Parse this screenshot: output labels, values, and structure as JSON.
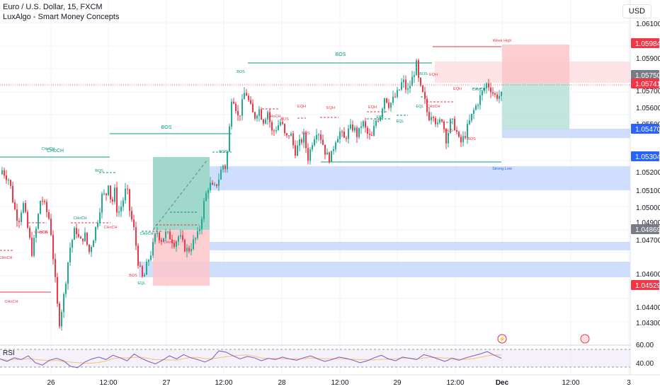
{
  "header": {
    "symbol": "Euro / U.S. Dollar, 15, FXCM",
    "indicator": "LuxAlgo - Smart Money Concepts",
    "currency_button": "USD",
    "rsi_label": "RSI"
  },
  "colors": {
    "up": "#22ab94",
    "down": "#f23645",
    "smc_green": "#089981",
    "smc_red": "#f23645",
    "demand_zone": "#c5d8fb",
    "tp_zone": "#b3e0d6",
    "sl_zone": "#fcc6c9",
    "grid": "#f0f3fa",
    "axis_text": "#131722",
    "rsi_line": "#7e57c2",
    "rsi_ma": "#f5c26b"
  },
  "chart_data": {
    "type": "candlestick",
    "title": "Euro / U.S. Dollar, 15, FXCM",
    "ylim": [
      1.0417,
      1.0637
    ],
    "y_ticks": [
      "1.06100",
      "1.05900",
      "1.05700",
      "1.05600",
      "1.05500",
      "1.05200",
      "1.05100",
      "1.05000",
      "1.04900",
      "1.04700",
      "1.04600",
      "1.04400",
      "1.04300"
    ],
    "x_ticks": [
      "26",
      "12:00",
      "27",
      "12:00",
      "28",
      "12:00",
      "29",
      "12:00",
      "Dec",
      "12:00",
      "3"
    ],
    "price_labels": [
      {
        "value": "1.05984",
        "kind": "red"
      },
      {
        "value": "1.05750",
        "kind": "gray"
      },
      {
        "value": "1.05741",
        "kind": "red"
      },
      {
        "value": "1.05470",
        "kind": "blue"
      },
      {
        "value": "1.05304",
        "kind": "blue"
      },
      {
        "value": "1.04869",
        "kind": "gray"
      },
      {
        "value": "1.04529",
        "kind": "red"
      }
    ],
    "close_path": [
      [
        0,
        1.0526
      ],
      [
        0.3,
        1.0522
      ],
      [
        0.6,
        1.0505
      ],
      [
        0.9,
        1.0496
      ],
      [
        1.2,
        1.0508
      ],
      [
        1.5,
        1.0492
      ],
      [
        1.8,
        1.0476
      ],
      [
        2.1,
        1.0492
      ],
      [
        2.4,
        1.0512
      ],
      [
        2.7,
        1.0504
      ],
      [
        3.0,
        1.0496
      ],
      [
        3.4,
        1.0452
      ],
      [
        3.6,
        1.043
      ],
      [
        3.9,
        1.0447
      ],
      [
        4.3,
        1.0478
      ],
      [
        4.7,
        1.0492
      ],
      [
        5.0,
        1.0482
      ],
      [
        5.3,
        1.0488
      ],
      [
        5.6,
        1.0476
      ],
      [
        5.9,
        1.0486
      ],
      [
        6.2,
        1.0498
      ],
      [
        6.5,
        1.0514
      ],
      [
        6.7,
        1.0511
      ],
      [
        6.9,
        1.0522
      ],
      [
        7.1,
        1.0505
      ],
      [
        7.3,
        1.0516
      ],
      [
        7.5,
        1.05
      ],
      [
        7.8,
        1.0507
      ],
      [
        8.1,
        1.0518
      ],
      [
        8.3,
        1.0503
      ],
      [
        8.6,
        1.049
      ],
      [
        8.9,
        1.0468
      ],
      [
        9.2,
        1.0458
      ],
      [
        9.5,
        1.047
      ],
      [
        9.8,
        1.0478
      ],
      [
        10.1,
        1.049
      ],
      [
        10.4,
        1.0484
      ],
      [
        10.7,
        1.0488
      ],
      [
        11.0,
        1.0486
      ],
      [
        11.3,
        1.0482
      ],
      [
        11.6,
        1.0487
      ],
      [
        11.9,
        1.048
      ],
      [
        12.2,
        1.0477
      ],
      [
        12.5,
        1.0482
      ],
      [
        12.9,
        1.0488
      ],
      [
        13.3,
        1.051
      ],
      [
        13.6,
        1.052
      ],
      [
        13.9,
        1.0516
      ],
      [
        14.2,
        1.0522
      ],
      [
        14.5,
        1.0532
      ],
      [
        14.7,
        1.053
      ],
      [
        14.9,
        1.0548
      ],
      [
        15.1,
        1.0576
      ],
      [
        15.3,
        1.0573
      ],
      [
        15.5,
        1.0562
      ],
      [
        15.7,
        1.0566
      ],
      [
        16.0,
        1.058
      ],
      [
        16.3,
        1.057
      ],
      [
        16.6,
        1.0562
      ],
      [
        16.9,
        1.0568
      ],
      [
        17.2,
        1.056
      ],
      [
        17.5,
        1.0566
      ],
      [
        17.8,
        1.0552
      ],
      [
        18.1,
        1.0556
      ],
      [
        18.4,
        1.056
      ],
      [
        18.7,
        1.0548
      ],
      [
        19.0,
        1.0553
      ],
      [
        19.3,
        1.054
      ],
      [
        19.6,
        1.0545
      ],
      [
        19.9,
        1.055
      ],
      [
        20.2,
        1.0536
      ],
      [
        20.5,
        1.0548
      ],
      [
        20.8,
        1.0555
      ],
      [
        21.1,
        1.0548
      ],
      [
        21.4,
        1.0538
      ],
      [
        21.7,
        1.0536
      ],
      [
        22.0,
        1.0548
      ],
      [
        22.3,
        1.0553
      ],
      [
        22.6,
        1.0548
      ],
      [
        22.9,
        1.0554
      ],
      [
        23.2,
        1.0556
      ],
      [
        23.5,
        1.055
      ],
      [
        23.8,
        1.056
      ],
      [
        24.1,
        1.0552
      ],
      [
        24.4,
        1.0548
      ],
      [
        24.7,
        1.056
      ],
      [
        25.0,
        1.0564
      ],
      [
        25.3,
        1.0576
      ],
      [
        25.6,
        1.057
      ],
      [
        25.9,
        1.0574
      ],
      [
        26.2,
        1.0578
      ],
      [
        26.5,
        1.0586
      ],
      [
        26.8,
        1.0578
      ],
      [
        27.1,
        1.0586
      ],
      [
        27.4,
        1.0596
      ],
      [
        27.6,
        1.0582
      ],
      [
        27.9,
        1.0575
      ],
      [
        28.2,
        1.0562
      ],
      [
        28.5,
        1.0566
      ],
      [
        28.8,
        1.0556
      ],
      [
        29.1,
        1.0562
      ],
      [
        29.4,
        1.0548
      ],
      [
        29.7,
        1.056
      ],
      [
        30.0,
        1.0556
      ],
      [
        30.3,
        1.0545
      ],
      [
        30.6,
        1.055
      ],
      [
        30.9,
        1.0558
      ],
      [
        31.2,
        1.0566
      ],
      [
        31.5,
        1.0572
      ],
      [
        31.8,
        1.0578
      ],
      [
        32.1,
        1.0584
      ],
      [
        32.4,
        1.058
      ],
      [
        32.6,
        1.0576
      ]
    ],
    "annotations": [
      {
        "text": "CHoCH",
        "color": "green"
      },
      {
        "text": "BOS",
        "color": "green"
      },
      {
        "text": "BOS",
        "color": "green"
      },
      {
        "text": "BOS",
        "color": "green"
      },
      {
        "text": "CHoCH",
        "color": "green"
      },
      {
        "text": "CHoCH",
        "color": "green"
      },
      {
        "text": "CHoCH",
        "color": "red"
      },
      {
        "text": "CHoCH",
        "color": "red"
      },
      {
        "text": "CHoCH",
        "color": "red"
      },
      {
        "text": "CHoCH",
        "color": "red"
      },
      {
        "text": "BOS",
        "color": "red"
      },
      {
        "text": "BOS",
        "color": "red"
      },
      {
        "text": "EQL",
        "color": "green"
      },
      {
        "text": "CHoCH",
        "color": "green"
      },
      {
        "text": "CHoCH",
        "color": "red"
      },
      {
        "text": "BOS",
        "color": "green"
      },
      {
        "text": "BOS",
        "color": "green"
      },
      {
        "text": "CHoCH",
        "color": "red"
      },
      {
        "text": "EQH",
        "color": "red"
      },
      {
        "text": "EQH",
        "color": "red"
      },
      {
        "text": "EQH",
        "color": "red"
      },
      {
        "text": "BOS",
        "color": "red"
      },
      {
        "text": "BOS",
        "color": "red"
      },
      {
        "text": "EQH",
        "color": "red"
      },
      {
        "text": "EQL",
        "color": "green"
      },
      {
        "text": "EQL",
        "color": "green"
      },
      {
        "text": "EQL",
        "color": "green"
      },
      {
        "text": "BOS",
        "color": "green"
      },
      {
        "text": "CHoCH",
        "color": "red"
      },
      {
        "text": "EQH",
        "color": "red"
      },
      {
        "text": "CHoCH",
        "color": "green"
      },
      {
        "text": "BOS",
        "color": "red"
      },
      {
        "text": "BOS",
        "color": "red"
      },
      {
        "text": "Week High",
        "color": "red"
      },
      {
        "text": "Strong Low",
        "color": "blue"
      }
    ],
    "rsi": {
      "label": "RSI",
      "ylim": [
        30,
        70
      ],
      "ticks": [
        "60.00",
        "40.00"
      ],
      "values": [
        50,
        46,
        52,
        49,
        55,
        44,
        40,
        48,
        51,
        47,
        38,
        36,
        45,
        50,
        53,
        49,
        56,
        52,
        47,
        58,
        51,
        46,
        42,
        48,
        55,
        50,
        57,
        52,
        49,
        45,
        50,
        63,
        61,
        55,
        50,
        54,
        52,
        47,
        51,
        49,
        53,
        50,
        48,
        52,
        55,
        50,
        46,
        49,
        53,
        51,
        48,
        44,
        47,
        52,
        56,
        50,
        47,
        53,
        51,
        49,
        57,
        54,
        50,
        46,
        51,
        48,
        52,
        55,
        58,
        62,
        56,
        51
      ]
    }
  }
}
